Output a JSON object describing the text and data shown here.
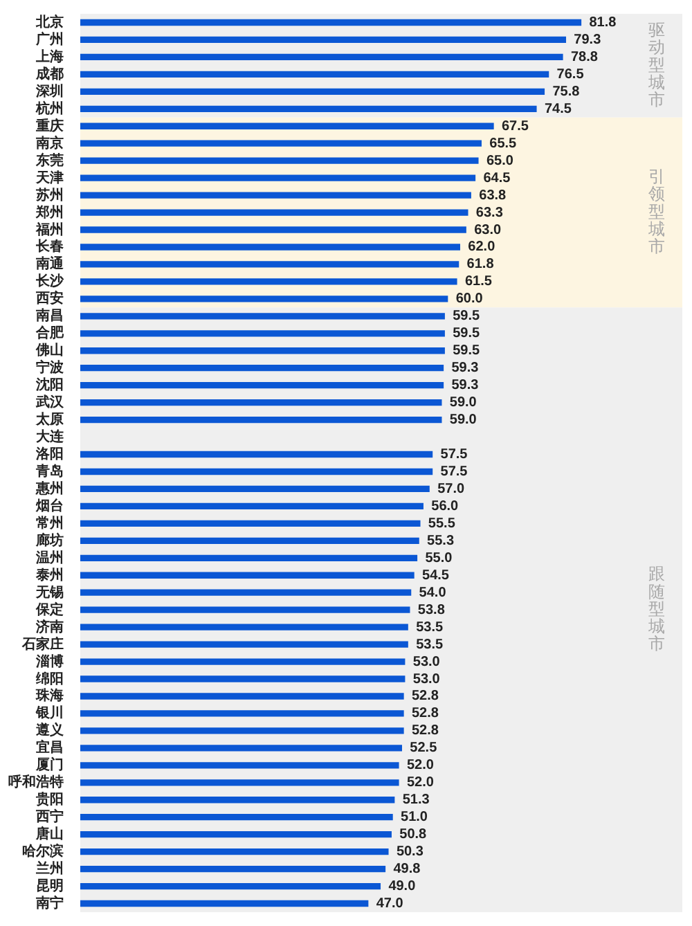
{
  "chart_data": {
    "type": "bar",
    "orientation": "horizontal",
    "categories": [
      "北京",
      "广州",
      "上海",
      "成都",
      "深圳",
      "杭州",
      "重庆",
      "南京",
      "东莞",
      "天津",
      "苏州",
      "郑州",
      "福州",
      "长春",
      "南通",
      "长沙",
      "西安",
      "南昌",
      "合肥",
      "佛山",
      "宁波",
      "沈阳",
      "武汉",
      "太原",
      "大连",
      "洛阳",
      "青岛",
      "惠州",
      "烟台",
      "常州",
      "廊坊",
      "温州",
      "泰州",
      "无锡",
      "保定",
      "济南",
      "石家庄",
      "淄博",
      "绵阳",
      "珠海",
      "银川",
      "遵义",
      "宜昌",
      "厦门",
      "呼和浩特",
      "贵阳",
      "西宁",
      "唐山",
      "哈尔滨",
      "兰州",
      "昆明",
      "南宁"
    ],
    "values": [
      81.8,
      79.3,
      78.8,
      76.5,
      75.8,
      74.5,
      67.5,
      65.5,
      65.0,
      64.5,
      63.8,
      63.3,
      63.0,
      62.0,
      61.8,
      61.5,
      60.0,
      59.5,
      59.5,
      59.5,
      59.3,
      59.3,
      59.0,
      59.0,
      null,
      57.5,
      57.5,
      57.0,
      56.0,
      55.5,
      55.3,
      55.0,
      54.5,
      54.0,
      53.8,
      53.5,
      53.5,
      53.0,
      53.0,
      52.8,
      52.8,
      52.8,
      52.5,
      52.0,
      52.0,
      51.3,
      51.0,
      50.8,
      50.3,
      49.8,
      49.0,
      47.0
    ],
    "value_labels": [
      "81.8",
      "79.3",
      "78.8",
      "76.5",
      "75.8",
      "74.5",
      "67.5",
      "65.5",
      "65.0",
      "64.5",
      "63.8",
      "63.3",
      "63.0",
      "62.0",
      "61.8",
      "61.5",
      "60.0",
      "59.5",
      "59.5",
      "59.5",
      "59.3",
      "59.3",
      "59.0",
      "59.0",
      null,
      "57.5",
      "57.5",
      "57.0",
      "56.0",
      "55.5",
      "55.3",
      "55.0",
      "54.5",
      "54.0",
      "53.8",
      "53.5",
      "53.5",
      "53.0",
      "53.0",
      "52.8",
      "52.8",
      "52.8",
      "52.5",
      "52.0",
      "52.0",
      "51.3",
      "51.0",
      "50.8",
      "50.3",
      "49.8",
      "49.0",
      "47.0"
    ],
    "color": "#0b57d4",
    "tick_labels": "y",
    "bands": [
      {
        "axis": "y",
        "from": "北京",
        "to": "杭州",
        "label": "驱动型城市",
        "color": "#efefef"
      },
      {
        "axis": "y",
        "from": "重庆",
        "to": "西安",
        "label": "引领型城市",
        "color": "#fdf5e1"
      },
      {
        "axis": "y",
        "from": "南昌",
        "to": "南宁",
        "label": "跟随型城市",
        "color": "#efefef"
      }
    ]
  }
}
